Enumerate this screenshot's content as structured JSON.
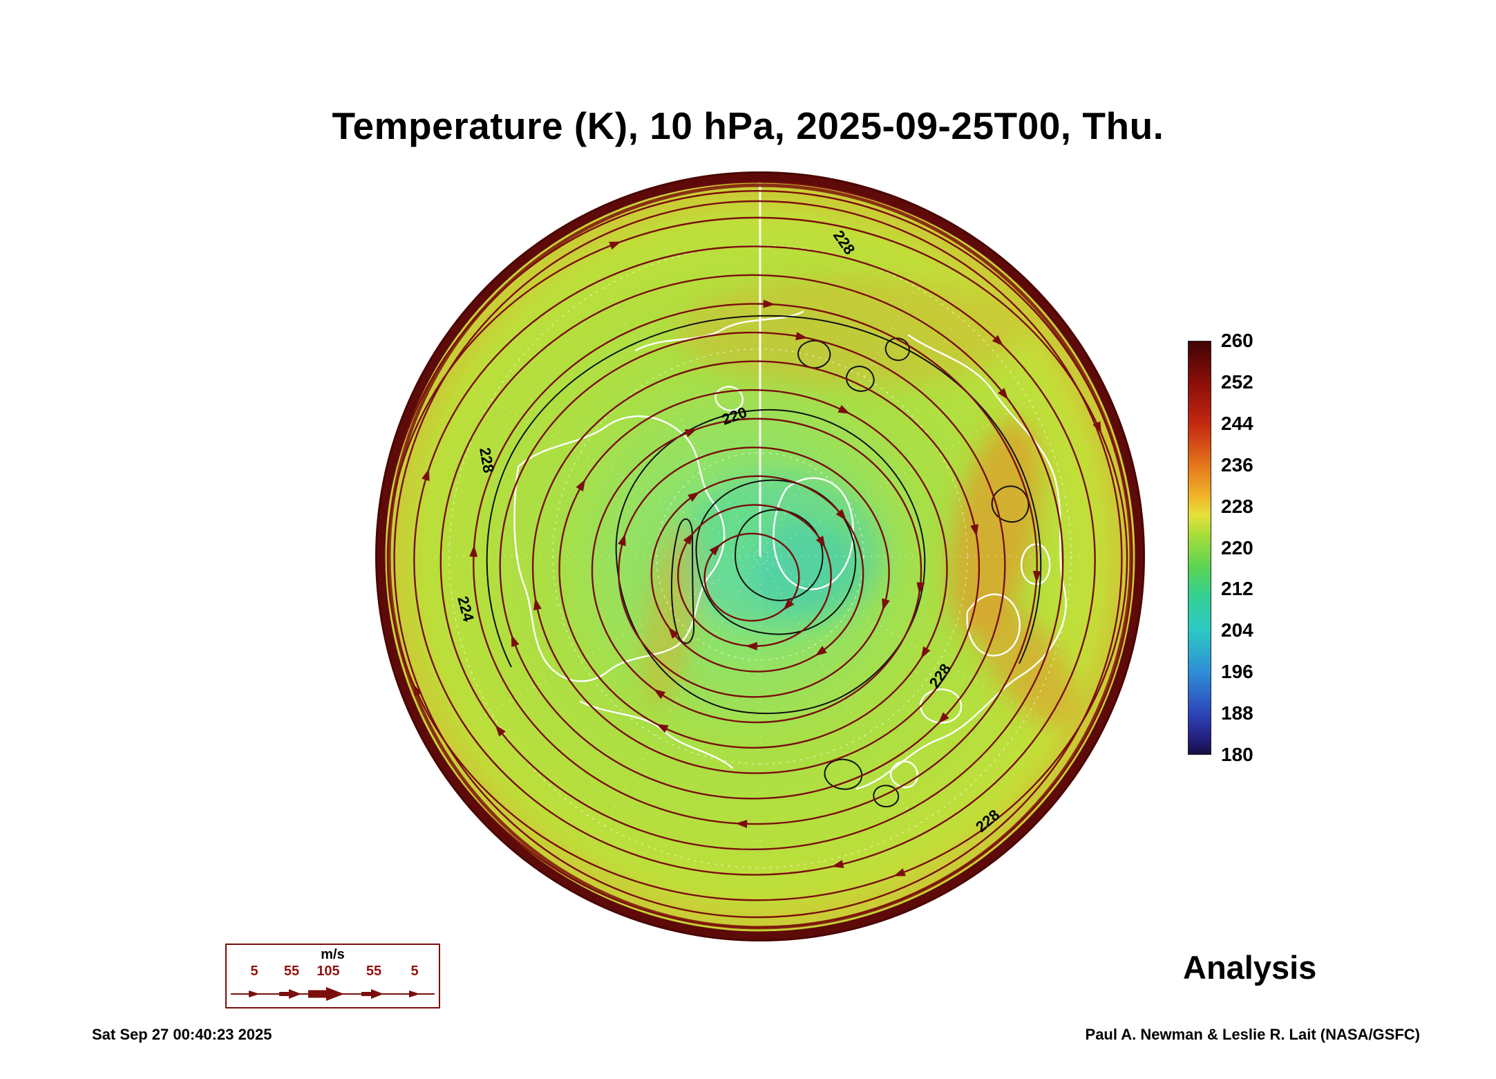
{
  "title": "Temperature (K), 10 hPa, 2025-09-25T00, Thu.",
  "analysis_label": "Analysis",
  "footer": {
    "timestamp": "Sat Sep 27 00:40:23 2025",
    "credit": "Paul A. Newman & Leslie R. Lait (NASA/GSFC)"
  },
  "colorbar": {
    "ticks": [
      "260",
      "252",
      "244",
      "236",
      "228",
      "220",
      "212",
      "204",
      "196",
      "188",
      "180"
    ]
  },
  "wind_legend": {
    "units": "m/s",
    "values": [
      "5",
      "55",
      "105",
      "55",
      "5"
    ]
  },
  "map": {
    "contour_labels": [
      "228",
      "220",
      "228",
      "224",
      "228",
      "228"
    ]
  },
  "chart_data": {
    "type": "heatmap",
    "title": "Temperature (K), 10 hPa, 2025-09-25T00, Thu.",
    "variable": "Temperature",
    "units": "K",
    "pressure_level": "10 hPa",
    "valid_time": "2025-09-25T00",
    "projection": "north polar stereographic",
    "product": "Analysis",
    "colorbar": {
      "range": [
        180,
        260
      ],
      "tick_interval": 8,
      "ticks": [
        260,
        252,
        244,
        236,
        228,
        220,
        212,
        204,
        196,
        188,
        180
      ],
      "orientation": "vertical",
      "colormap": "dark-blue to cyan to green to yellow to orange to dark-red rainbow"
    },
    "contour_labels_visible": [
      220,
      224,
      228
    ],
    "field_summary": "Cold polar vortex core near the pole around 212-218 K (green/cyan), broad 220-228 K green-yellow midlatitudes, orange 232-240 K streaks, dark-red ring above 250 K at the disk edge; dark-red wind streamlines spiral around the pole",
    "wind_reference_speeds_ms": [
      5,
      55,
      105,
      55,
      5
    ],
    "overlays": [
      "white coastlines",
      "white dashed lat/lon graticule",
      "black temperature contours",
      "dark-red wind streamlines with arrowheads"
    ],
    "annotations": {
      "timestamp": "Sat Sep 27 00:40:23 2025",
      "credit": "Paul A. Newman & Leslie R. Lait (NASA/GSFC)",
      "label": "Analysis"
    }
  }
}
